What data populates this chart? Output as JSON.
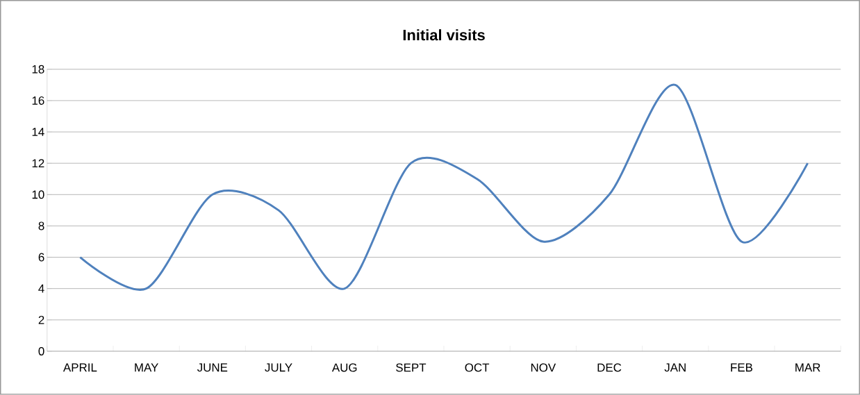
{
  "chart_data": {
    "type": "line",
    "title": "**Initial visits**",
    "categories": [
      "APRIL",
      "MAY",
      "JUNE",
      "JULY",
      "AUG",
      "SEPT",
      "OCT",
      "NOV",
      "DEC",
      "JAN",
      "FEB",
      "MAR"
    ],
    "series": [
      {
        "color": "#4f81bd",
        "values": [
          6,
          4,
          10,
          9,
          4,
          12,
          11,
          7,
          10,
          17,
          7,
          12
        ]
      }
    ],
    "ylim": [
      0,
      18
    ],
    "yticks": [
      0,
      2,
      4,
      6,
      8,
      10,
      12,
      14,
      16,
      18
    ],
    "grid": "y",
    "marker": "none",
    "line_style": "solid"
  }
}
